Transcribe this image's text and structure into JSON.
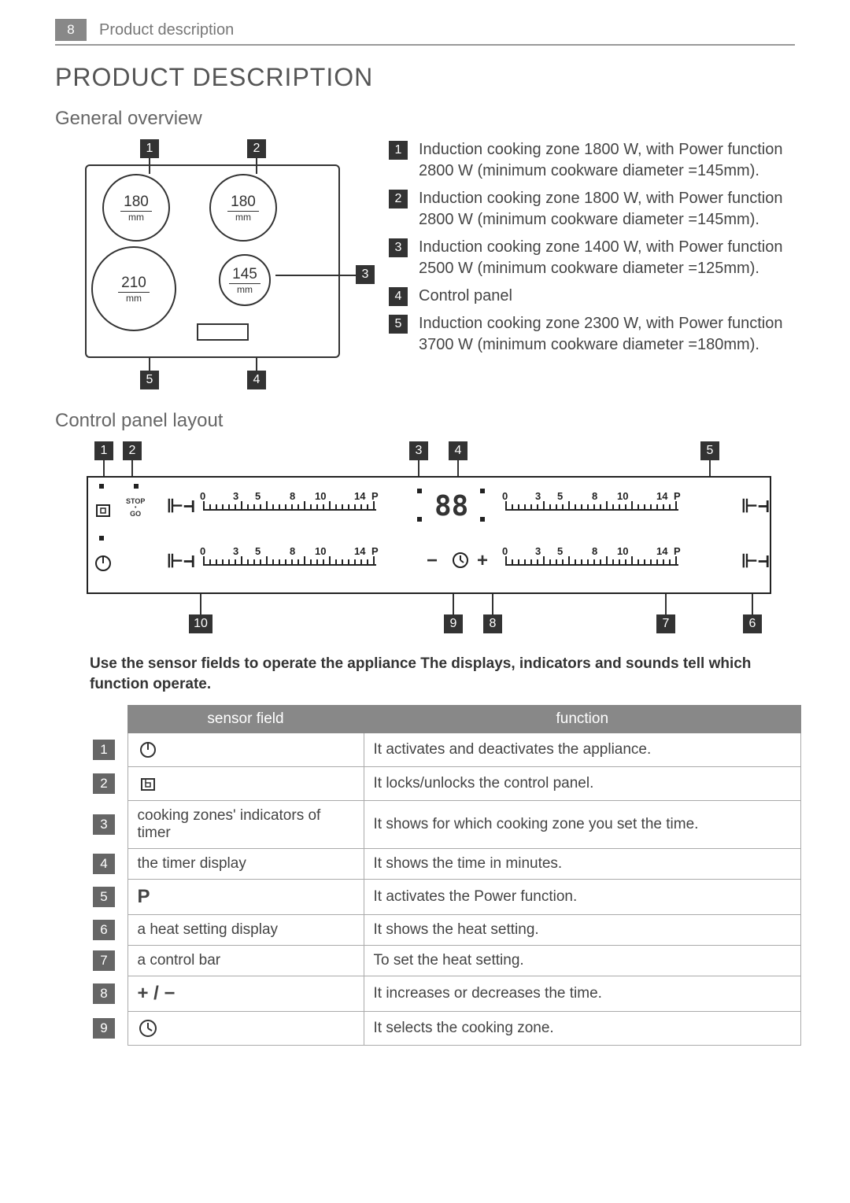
{
  "header": {
    "page_number": "8",
    "section": "Product description"
  },
  "title": "PRODUCT DESCRIPTION",
  "overview": {
    "heading": "General overview",
    "zones": {
      "z1": {
        "size": "180",
        "unit": "mm"
      },
      "z2": {
        "size": "180",
        "unit": "mm"
      },
      "z3": {
        "size": "145",
        "unit": "mm"
      },
      "z5": {
        "size": "210",
        "unit": "mm"
      }
    },
    "callouts": [
      "1",
      "2",
      "3",
      "4",
      "5"
    ],
    "items": [
      {
        "n": "1",
        "text": "Induction cooking zone 1800 W, with Power function 2800 W (minimum cookware diameter =145mm)."
      },
      {
        "n": "2",
        "text": "Induction cooking zone 1800 W, with Power function 2800 W (minimum cookware diameter =145mm)."
      },
      {
        "n": "3",
        "text": "Induction cooking zone 1400 W, with Power function 2500 W (minimum cookware diameter =125mm)."
      },
      {
        "n": "4",
        "text": "Control panel"
      },
      {
        "n": "5",
        "text": "Induction cooking zone 2300 W, with Power function 3700 W (minimum cookware diameter =180mm)."
      }
    ]
  },
  "panel": {
    "heading": "Control panel layout",
    "slider_labels": [
      "0",
      "3",
      "5",
      "8",
      "10",
      "14",
      "P"
    ],
    "timer_display": "88",
    "stop_go": {
      "line1": "STOP",
      "line2": "GO"
    },
    "callouts_top": [
      "1",
      "2",
      "3",
      "4",
      "5"
    ],
    "callouts_bottom": [
      "10",
      "9",
      "8",
      "7",
      "6"
    ],
    "instruction": "Use the sensor fields to operate the appliance The displays, indicators and sounds tell which function operate."
  },
  "table": {
    "headers": {
      "num": "",
      "sensor": "sensor field",
      "function": "function"
    },
    "rows": [
      {
        "n": "1",
        "sensor_type": "power-icon",
        "sensor_text": "",
        "function": "It activates and deactivates the appliance."
      },
      {
        "n": "2",
        "sensor_type": "lock-icon",
        "sensor_text": "",
        "function": "It locks/unlocks the control panel."
      },
      {
        "n": "3",
        "sensor_type": "text",
        "sensor_text": "cooking zones' indicators of timer",
        "function": "It shows for which cooking zone you set the time."
      },
      {
        "n": "4",
        "sensor_type": "text",
        "sensor_text": "the timer display",
        "function": "It shows the time in minutes."
      },
      {
        "n": "5",
        "sensor_type": "p-icon",
        "sensor_text": "P",
        "function": "It activates the Power function."
      },
      {
        "n": "6",
        "sensor_type": "text",
        "sensor_text": "a heat setting display",
        "function": "It shows the heat setting."
      },
      {
        "n": "7",
        "sensor_type": "text",
        "sensor_text": "a control bar",
        "function": "To set the heat setting."
      },
      {
        "n": "8",
        "sensor_type": "plus-minus",
        "sensor_text": "+ / −",
        "function": "It increases or decreases the time."
      },
      {
        "n": "9",
        "sensor_type": "clock-icon",
        "sensor_text": "",
        "function": "It selects the cooking zone."
      }
    ]
  },
  "colors": {
    "callout_bg": "#333333",
    "header_gray": "#888888",
    "text": "#444444",
    "line": "#222222"
  }
}
